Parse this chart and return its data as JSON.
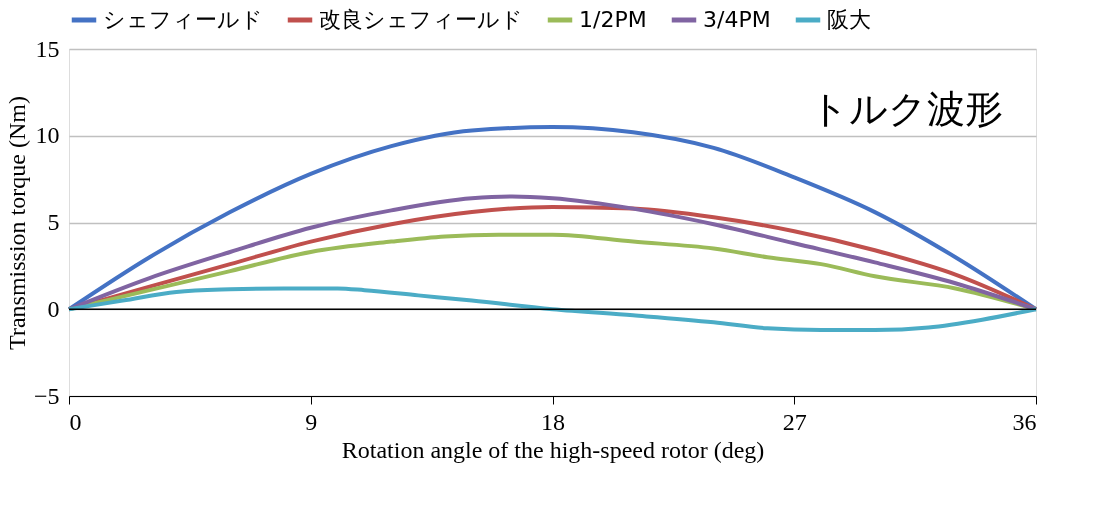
{
  "chart_data": {
    "type": "line",
    "xlabel": "Rotation angle of the high-speed rotor (deg)",
    "ylabel": "Transmission torque (Nm)",
    "xlim": [
      0,
      36
    ],
    "xticks": [
      0,
      9,
      18,
      27,
      36
    ],
    "ylim": [
      -5,
      15
    ],
    "yticks": [
      -5,
      0,
      5,
      10,
      15
    ],
    "grid": "y",
    "legend": "top",
    "marker": "none",
    "line_style": "solid",
    "annotations": [
      "トルク波形"
    ],
    "series": [
      {
        "name": "シェフィールド",
        "color": "#4472c4",
        "x": [
          0,
          3,
          6,
          9,
          12,
          15,
          18,
          21,
          24,
          27,
          30,
          33,
          36
        ],
        "values": [
          0,
          3.0,
          5.6,
          7.8,
          9.4,
          10.3,
          10.5,
          10.2,
          9.3,
          7.6,
          5.6,
          3.0,
          0
        ]
      },
      {
        "name": "改良シェフィールド",
        "color": "#c0504d",
        "x": [
          0,
          3,
          6,
          9,
          12,
          15,
          18,
          21,
          24,
          27,
          30,
          33,
          36
        ],
        "values": [
          0,
          1.3,
          2.6,
          3.9,
          4.9,
          5.6,
          5.9,
          5.8,
          5.3,
          4.5,
          3.4,
          2.0,
          0
        ]
      },
      {
        "name": "1/2PM",
        "color": "#9bbb59",
        "x": [
          0,
          3,
          6,
          9,
          12,
          14,
          16,
          18,
          21,
          24,
          26,
          28,
          30,
          33,
          36
        ],
        "values": [
          0,
          1.1,
          2.2,
          3.3,
          3.9,
          4.2,
          4.3,
          4.3,
          3.9,
          3.5,
          3.0,
          2.6,
          1.9,
          1.2,
          0
        ]
      },
      {
        "name": "3/4PM",
        "color": "#8064a2",
        "x": [
          0,
          3,
          6,
          9,
          12,
          15,
          16.5,
          18,
          21,
          24,
          27,
          30,
          33,
          36
        ],
        "values": [
          0,
          1.8,
          3.3,
          4.7,
          5.7,
          6.4,
          6.5,
          6.4,
          5.8,
          4.9,
          3.8,
          2.7,
          1.5,
          0
        ]
      },
      {
        "name": "阪大",
        "color": "#4bacc6",
        "x": [
          0,
          2,
          4,
          6,
          8,
          10,
          11,
          13,
          15,
          18,
          21,
          24,
          26,
          28,
          30,
          32,
          34,
          36
        ],
        "values": [
          0,
          0.5,
          1.0,
          1.15,
          1.2,
          1.2,
          1.1,
          0.8,
          0.5,
          0,
          -0.35,
          -0.75,
          -1.1,
          -1.2,
          -1.2,
          -1.05,
          -0.6,
          0
        ]
      }
    ]
  }
}
